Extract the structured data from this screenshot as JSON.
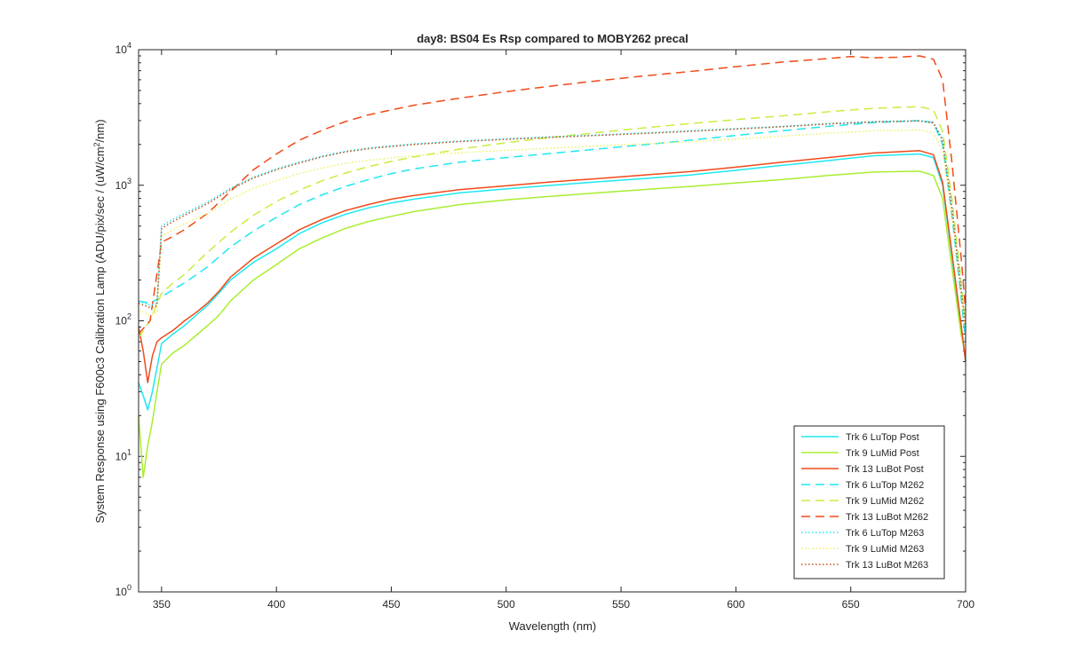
{
  "chart_data": {
    "type": "line",
    "title": "day8: BS04 Es Rsp compared to MOBY262 precal",
    "xlabel": "Wavelength (nm)",
    "ylabel_main": "System Response using F600c3 Calibration Lamp  (ADU/pix/sec / (uW/cm",
    "ylabel_sup": "2",
    "ylabel_end": "/nm)",
    "xlim": [
      340,
      700
    ],
    "ylim": [
      1,
      10000
    ],
    "yscale": "log",
    "grid": false,
    "legend_position": "bottom-right",
    "xticks": [
      "350",
      "400",
      "450",
      "500",
      "550",
      "600",
      "650",
      "700"
    ],
    "yticks": [
      {
        "base": "10",
        "exp": "0"
      },
      {
        "base": "10",
        "exp": "1"
      },
      {
        "base": "10",
        "exp": "2"
      },
      {
        "base": "10",
        "exp": "3"
      },
      {
        "base": "10",
        "exp": "4"
      }
    ],
    "series": [
      {
        "name": "Trk 6 LuTop Post",
        "color": "#1ee8f0",
        "style": "solid",
        "x": [
          340,
          342,
          344,
          346,
          348,
          350,
          355,
          360,
          365,
          370,
          375,
          380,
          390,
          400,
          410,
          420,
          430,
          440,
          450,
          460,
          480,
          500,
          520,
          540,
          560,
          580,
          600,
          620,
          640,
          660,
          680,
          686,
          690,
          694,
          698,
          700
        ],
        "y": [
          35,
          28,
          22,
          30,
          45,
          68,
          80,
          92,
          110,
          130,
          160,
          200,
          270,
          340,
          440,
          530,
          610,
          680,
          740,
          790,
          880,
          940,
          1000,
          1060,
          1120,
          1190,
          1290,
          1400,
          1520,
          1650,
          1700,
          1600,
          1000,
          300,
          90,
          50
        ]
      },
      {
        "name": "Trk 9 LuMid Post",
        "color": "#a8ee30",
        "style": "solid",
        "x": [
          340,
          342,
          344,
          346,
          348,
          350,
          355,
          360,
          365,
          370,
          375,
          380,
          390,
          400,
          410,
          420,
          430,
          440,
          450,
          460,
          480,
          500,
          520,
          540,
          560,
          580,
          600,
          620,
          640,
          660,
          680,
          686,
          690,
          694,
          698,
          700
        ],
        "y": [
          20,
          7,
          12,
          18,
          30,
          48,
          58,
          66,
          78,
          92,
          110,
          140,
          200,
          260,
          340,
          410,
          480,
          540,
          590,
          640,
          720,
          780,
          830,
          880,
          930,
          980,
          1040,
          1100,
          1180,
          1250,
          1270,
          1180,
          800,
          250,
          80,
          55
        ]
      },
      {
        "name": "Trk 13 LuBot Post",
        "color": "#f04a1a",
        "style": "solid",
        "x": [
          340,
          342,
          344,
          346,
          348,
          350,
          355,
          360,
          365,
          370,
          375,
          380,
          390,
          400,
          410,
          420,
          430,
          440,
          450,
          460,
          480,
          500,
          520,
          540,
          560,
          580,
          600,
          620,
          640,
          660,
          680,
          686,
          690,
          694,
          698,
          700
        ],
        "y": [
          90,
          60,
          35,
          55,
          70,
          75,
          85,
          100,
          115,
          135,
          165,
          210,
          290,
          370,
          470,
          560,
          650,
          720,
          790,
          840,
          930,
          990,
          1060,
          1120,
          1190,
          1260,
          1360,
          1480,
          1600,
          1730,
          1800,
          1680,
          1050,
          320,
          95,
          50
        ]
      },
      {
        "name": "Trk 6 LuTop M262",
        "color": "#1ee8f0",
        "style": "dashed",
        "x": [
          340,
          345,
          350,
          355,
          360,
          370,
          380,
          390,
          400,
          410,
          420,
          430,
          440,
          450,
          460,
          480,
          500,
          520,
          540,
          560,
          580,
          600,
          620,
          640,
          660,
          680,
          686,
          690,
          694,
          698,
          700
        ],
        "y": [
          140,
          135,
          150,
          170,
          190,
          250,
          350,
          460,
          580,
          720,
          850,
          980,
          1100,
          1220,
          1320,
          1480,
          1600,
          1720,
          1850,
          1990,
          2150,
          2330,
          2520,
          2720,
          2900,
          3000,
          2900,
          2000,
          600,
          150,
          70
        ]
      },
      {
        "name": "Trk 9 LuMid M262",
        "color": "#c8ee40",
        "style": "dashed",
        "x": [
          340,
          345,
          350,
          355,
          360,
          370,
          380,
          390,
          400,
          410,
          420,
          430,
          440,
          450,
          460,
          480,
          500,
          520,
          540,
          560,
          580,
          600,
          620,
          640,
          660,
          680,
          686,
          690,
          694,
          698,
          700
        ],
        "y": [
          75,
          100,
          160,
          190,
          220,
          320,
          450,
          600,
          760,
          920,
          1080,
          1230,
          1370,
          1500,
          1620,
          1850,
          2060,
          2260,
          2450,
          2650,
          2850,
          3050,
          3250,
          3480,
          3700,
          3800,
          3600,
          2500,
          800,
          200,
          90
        ]
      },
      {
        "name": "Trk 13 LuBot M262",
        "color": "#f04a1a",
        "style": "dashed",
        "x": [
          340,
          345,
          350,
          355,
          360,
          370,
          380,
          390,
          400,
          410,
          420,
          430,
          440,
          450,
          460,
          480,
          500,
          520,
          540,
          560,
          580,
          600,
          620,
          640,
          650,
          660,
          670,
          680,
          686,
          690,
          694,
          698,
          700
        ],
        "y": [
          80,
          100,
          380,
          420,
          470,
          620,
          900,
          1300,
          1700,
          2150,
          2550,
          2950,
          3300,
          3600,
          3900,
          4400,
          4900,
          5400,
          5900,
          6400,
          6900,
          7500,
          8100,
          8600,
          8900,
          8700,
          8800,
          9000,
          8500,
          6000,
          1500,
          300,
          120
        ]
      },
      {
        "name": "Trk 6 LuTop M263",
        "color": "#1ee8f0",
        "style": "dotted",
        "x": [
          340,
          345,
          348,
          350,
          355,
          360,
          370,
          380,
          390,
          400,
          410,
          420,
          430,
          440,
          450,
          460,
          480,
          500,
          520,
          540,
          560,
          580,
          600,
          620,
          640,
          660,
          680,
          686,
          690,
          694,
          698,
          700
        ],
        "y": [
          140,
          130,
          135,
          500,
          560,
          620,
          750,
          950,
          1150,
          1320,
          1480,
          1640,
          1780,
          1880,
          1950,
          2020,
          2120,
          2200,
          2280,
          2350,
          2430,
          2520,
          2620,
          2720,
          2850,
          2950,
          3000,
          2900,
          2200,
          700,
          180,
          90
        ]
      },
      {
        "name": "Trk 9 LuMid M263",
        "color": "#eef060",
        "style": "dotted",
        "x": [
          340,
          345,
          348,
          350,
          355,
          360,
          370,
          380,
          390,
          400,
          410,
          420,
          430,
          440,
          450,
          460,
          480,
          500,
          520,
          540,
          560,
          580,
          600,
          620,
          640,
          660,
          680,
          686,
          690,
          694,
          698,
          700
        ],
        "y": [
          120,
          110,
          115,
          420,
          470,
          520,
          620,
          790,
          950,
          1080,
          1220,
          1340,
          1450,
          1530,
          1590,
          1650,
          1740,
          1810,
          1880,
          1950,
          2020,
          2100,
          2190,
          2300,
          2420,
          2520,
          2560,
          2450,
          1800,
          600,
          160,
          85
        ]
      },
      {
        "name": "Trk 13 LuBot M263",
        "color": "#c8501a",
        "style": "dotted",
        "x": [
          340,
          345,
          348,
          350,
          355,
          360,
          370,
          380,
          390,
          400,
          410,
          420,
          430,
          440,
          450,
          460,
          480,
          500,
          520,
          540,
          560,
          580,
          600,
          620,
          640,
          660,
          680,
          686,
          690,
          694,
          698,
          700
        ],
        "y": [
          135,
          125,
          130,
          480,
          540,
          600,
          730,
          930,
          1130,
          1300,
          1460,
          1620,
          1760,
          1860,
          1930,
          2000,
          2100,
          2180,
          2260,
          2330,
          2410,
          2500,
          2600,
          2700,
          2830,
          2930,
          2980,
          2880,
          2150,
          680,
          170,
          90
        ]
      }
    ]
  }
}
